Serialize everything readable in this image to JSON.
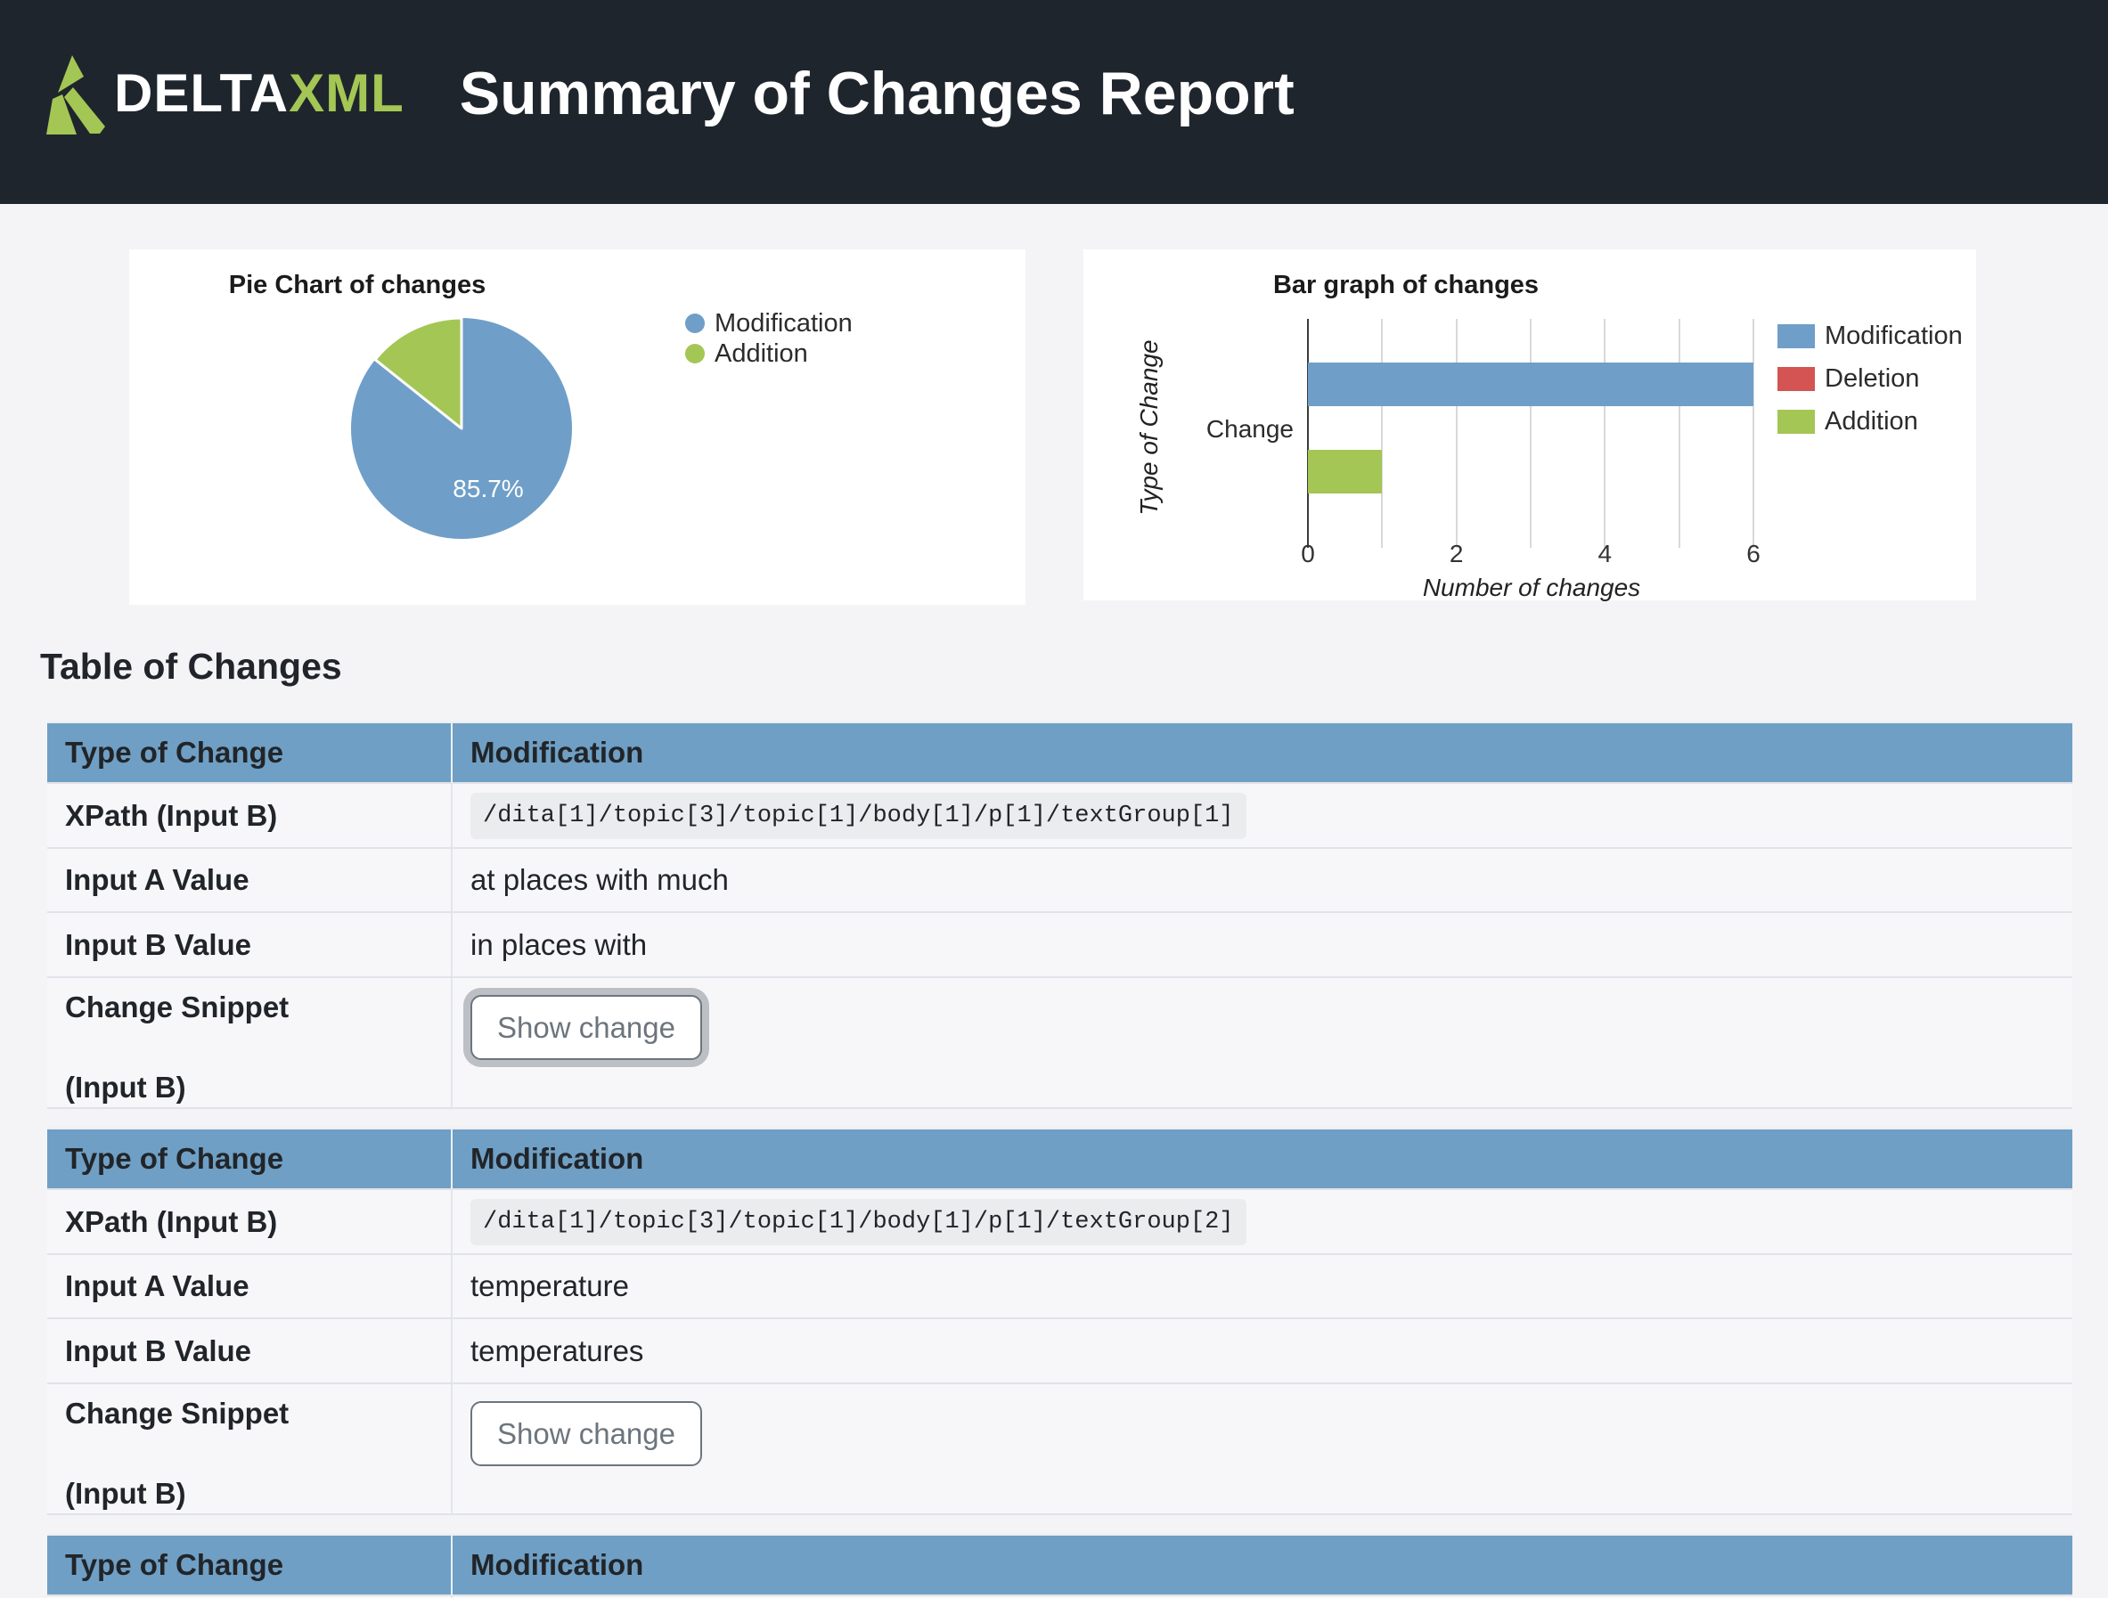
{
  "header": {
    "logo_delta": "DELTA",
    "logo_xml": "XML",
    "title": "Summary of Changes Report"
  },
  "colors": {
    "header_bg": "#1f252d",
    "brand_green": "#a4c654",
    "chart_blue": "#6f9fc8",
    "chart_red": "#d45453",
    "table_header_blue": "#6f9fc4",
    "page_bg": "#f4f4f6",
    "card_bg": "#ffffff",
    "text_dark": "#212529",
    "button_gray": "#6c757d",
    "code_bg": "#ebecee",
    "row_bg": "#f7f7f9",
    "gridline": "#d9d9d9"
  },
  "chart_data": [
    {
      "type": "pie",
      "title": "Pie Chart of changes",
      "labels": [
        "Modification",
        "Addition"
      ],
      "values": [
        6,
        1
      ],
      "percentages": [
        "85.7%",
        "14.3%"
      ],
      "shown_label": "85.7%",
      "colors": [
        "#6f9fc8",
        "#a4c654"
      ],
      "legend_position": "right"
    },
    {
      "type": "bar",
      "orientation": "horizontal",
      "title": "Bar graph of changes",
      "categories": [
        "Change"
      ],
      "series": [
        {
          "name": "Modification",
          "values": [
            6
          ],
          "color": "#6f9fc8"
        },
        {
          "name": "Deletion",
          "values": [
            0
          ],
          "color": "#d45453"
        },
        {
          "name": "Addition",
          "values": [
            1
          ],
          "color": "#a4c654"
        }
      ],
      "xlabel": "Number of changes",
      "ylabel": "Type of Change",
      "xlim": [
        0,
        6
      ],
      "xticks": [
        0,
        2,
        4,
        6
      ],
      "grid": true,
      "legend_position": "right"
    }
  ],
  "table_section": {
    "heading": "Table of Changes",
    "tables": [
      {
        "col1_header": "Type of Change",
        "col2_header": "Modification",
        "xpath_label": "XPath (Input B)",
        "xpath_value": "/dita[1]/topic[3]/topic[1]/body[1]/p[1]/textGroup[1]",
        "input_a_label": "Input A Value",
        "input_a_value": "at places with much",
        "input_b_label": "Input B Value",
        "input_b_value": "in places with",
        "snippet_label_line1": "Change Snippet",
        "snippet_label_line2": "(Input B)",
        "button_label": "Show change"
      },
      {
        "col1_header": "Type of Change",
        "col2_header": "Modification",
        "xpath_label": "XPath (Input B)",
        "xpath_value": "/dita[1]/topic[3]/topic[1]/body[1]/p[1]/textGroup[2]",
        "input_a_label": "Input A Value",
        "input_a_value": "temperature",
        "input_b_label": "Input B Value",
        "input_b_value": "temperatures",
        "snippet_label_line1": "Change Snippet",
        "snippet_label_line2": "(Input B)",
        "button_label": "Show change"
      },
      {
        "col1_header": "Type of Change",
        "col2_header": "Modification"
      }
    ]
  }
}
